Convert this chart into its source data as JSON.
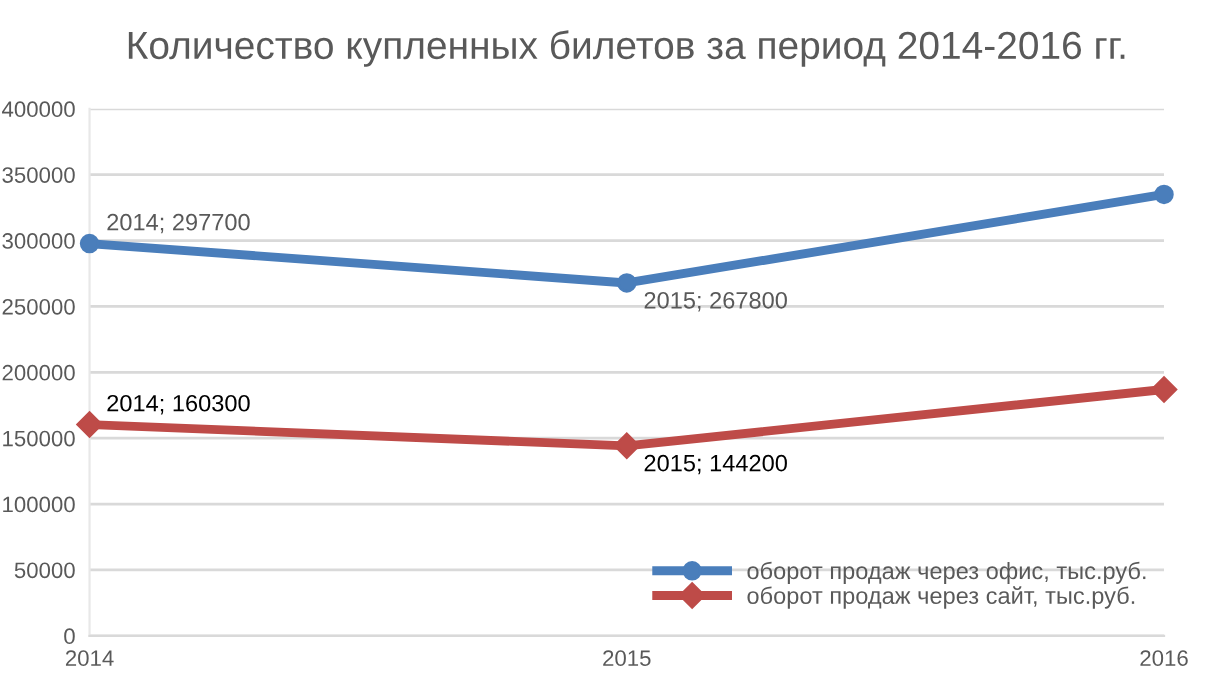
{
  "chart_data": {
    "type": "line",
    "title": "Количество купленных билетов за период 2014-2016 гг.",
    "x": [
      2014,
      2015,
      2016
    ],
    "series": [
      {
        "name": "оборот продаж через офис, тыс.руб.",
        "color": "#4a7ebb",
        "marker": "circle",
        "values": [
          297700,
          267800,
          335000
        ],
        "value_labels": [
          "2014; 297700",
          "2015; 267800",
          null
        ]
      },
      {
        "name": "оборот продаж через сайт, тыс.руб.",
        "color": "#be4b48",
        "marker": "diamond",
        "values": [
          160300,
          144200,
          187000
        ],
        "value_labels": [
          "2014; 160300",
          "2015; 144200",
          null
        ]
      }
    ],
    "xlim": [
      2014,
      2016
    ],
    "xticks": [
      2014,
      2015,
      2016
    ],
    "ylim": [
      0,
      400000
    ],
    "yticks": [
      0,
      50000,
      100000,
      150000,
      200000,
      250000,
      300000,
      350000,
      400000
    ],
    "grid": "y",
    "legend": "bottom right",
    "line_style": "solid"
  }
}
